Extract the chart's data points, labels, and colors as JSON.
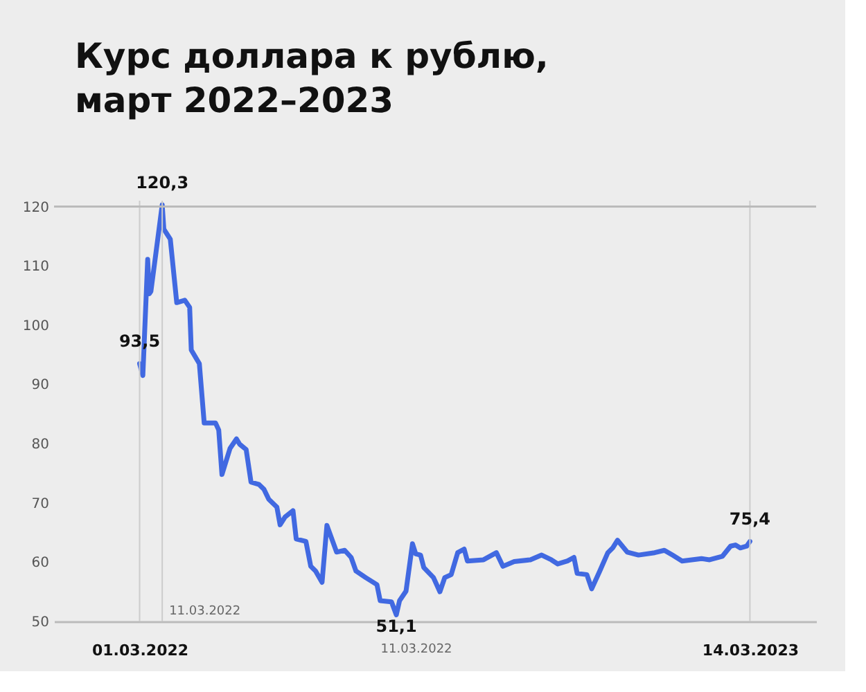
{
  "chart_data": {
    "type": "line",
    "title": "Курс доллара к рублю,\nмарт 2022–2023",
    "series": [
      {
        "color": "#4169e1",
        "x": [
          "2022-03-01",
          "2022-03-03",
          "2022-03-06",
          "2022-03-07",
          "2022-03-08",
          "2022-03-15",
          "2022-03-16",
          "2022-03-20",
          "2022-03-24",
          "2022-03-29",
          "2022-04-01",
          "2022-04-02",
          "2022-04-07",
          "2022-04-10",
          "2022-04-17",
          "2022-04-19",
          "2022-04-21",
          "2022-04-26",
          "2022-04-30",
          "2022-05-02",
          "2022-05-06",
          "2022-05-09",
          "2022-05-14",
          "2022-05-17",
          "2022-05-20",
          "2022-05-25",
          "2022-05-27",
          "2022-05-30",
          "2022-06-04",
          "2022-06-06",
          "2022-06-12",
          "2022-06-15",
          "2022-06-18",
          "2022-06-22",
          "2022-06-25",
          "2022-07-01",
          "2022-07-06",
          "2022-07-10",
          "2022-07-13",
          "2022-07-19",
          "2022-07-26",
          "2022-07-28",
          "2022-08-04",
          "2022-08-07",
          "2022-08-09",
          "2022-08-13",
          "2022-08-17",
          "2022-08-19",
          "2022-08-22",
          "2022-08-24",
          "2022-08-30",
          "2022-09-03",
          "2022-09-06",
          "2022-09-10",
          "2022-09-14",
          "2022-09-18",
          "2022-09-20",
          "2022-09-30",
          "2022-10-08",
          "2022-10-12",
          "2022-10-19",
          "2022-10-29",
          "2022-11-05",
          "2022-11-11",
          "2022-11-15",
          "2022-11-21",
          "2022-11-25",
          "2022-11-27",
          "2022-12-03",
          "2022-12-06",
          "2022-12-11",
          "2022-12-16",
          "2022-12-19",
          "2022-12-22",
          "2022-12-28",
          "2023-01-04",
          "2023-01-14",
          "2023-01-20",
          "2023-01-25",
          "2023-01-31",
          "2023-02-12",
          "2023-02-17",
          "2023-02-25",
          "2023-03-02",
          "2023-03-05",
          "2023-03-08",
          "2023-03-12",
          "2023-03-14"
        ],
        "values": [
          93.5,
          91.5,
          111.1,
          105.3,
          105.7,
          120.3,
          116.2,
          114.5,
          103.8,
          104.2,
          103.0,
          95.8,
          93.5,
          83.5,
          83.5,
          82.3,
          74.8,
          79.2,
          80.8,
          79.9,
          79.0,
          73.5,
          73.1,
          72.3,
          70.6,
          69.3,
          66.3,
          67.6,
          68.7,
          63.9,
          63.5,
          59.3,
          58.5,
          56.6,
          66.2,
          61.7,
          62.0,
          60.8,
          58.5,
          57.4,
          56.2,
          53.5,
          53.3,
          51.1,
          53.5,
          55.1,
          63.1,
          61.4,
          61.2,
          59.1,
          57.4,
          55.0,
          57.4,
          57.9,
          61.6,
          62.2,
          60.2,
          60.4,
          61.6,
          59.3,
          60.1,
          60.4,
          61.2,
          60.4,
          59.7,
          60.2,
          60.8,
          58.1,
          57.9,
          55.5,
          58.5,
          61.6,
          62.4,
          63.7,
          61.7,
          61.2,
          61.6,
          62.0,
          61.2,
          60.2,
          60.6,
          60.4,
          61.0,
          62.7,
          62.9,
          62.4,
          62.7,
          63.5
        ]
      }
    ],
    "xlim": [
      "2022-01-07",
      "2023-04-24"
    ],
    "xticks": [
      {
        "value": "2022-03-01",
        "label": "01.03.2022"
      },
      {
        "value": "2022-08-19",
        "label": "11.03.2022"
      },
      {
        "value": "2023-03-14",
        "label": "14.03.2023"
      }
    ],
    "ylim": [
      50,
      121
    ],
    "yticks": [
      50,
      60,
      70,
      80,
      90,
      100,
      110,
      120
    ],
    "ref_lines": [
      {
        "axis": "x",
        "value": "2022-03-01"
      },
      {
        "axis": "x",
        "value": "2022-03-15",
        "label": "11.03.2022"
      },
      {
        "axis": "x",
        "value": "2023-03-14"
      },
      {
        "axis": "y",
        "value": 120
      }
    ],
    "annotations": [
      {
        "text": "93,5",
        "x": "2022-03-01",
        "y": 93.5
      },
      {
        "text": "120,3",
        "x": "2022-03-15",
        "y": 120.3
      },
      {
        "text": "51,1",
        "x": "2022-08-07",
        "y": 51.1
      },
      {
        "text": "75,4",
        "x": "2023-03-14",
        "y": 63.5
      }
    ],
    "grid": false,
    "marker": "none",
    "line_style": "solid"
  }
}
